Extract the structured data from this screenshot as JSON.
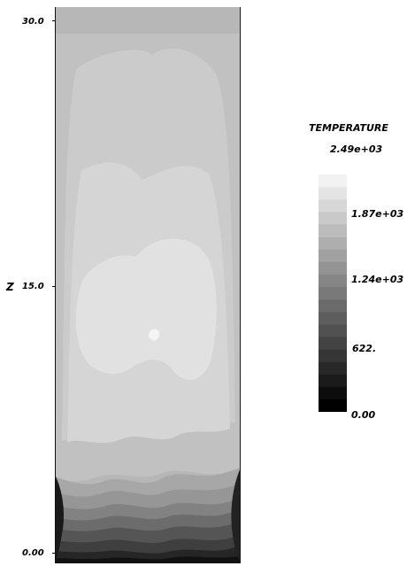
{
  "chart_data": {
    "type": "heatmap",
    "y_axis": {
      "label": "Z",
      "ticks": [
        "30.0",
        "15.0",
        "0.00"
      ],
      "range": [
        0,
        30
      ]
    },
    "legend": {
      "title": "TEMPERATURE",
      "labels": [
        "2.49e+03",
        "1.87e+03",
        "1.24e+03",
        "622.",
        "0.00"
      ],
      "range": [
        0,
        2490
      ],
      "levels": 20,
      "colorscale": "grayscale",
      "placement": "right"
    },
    "grid": false
  }
}
